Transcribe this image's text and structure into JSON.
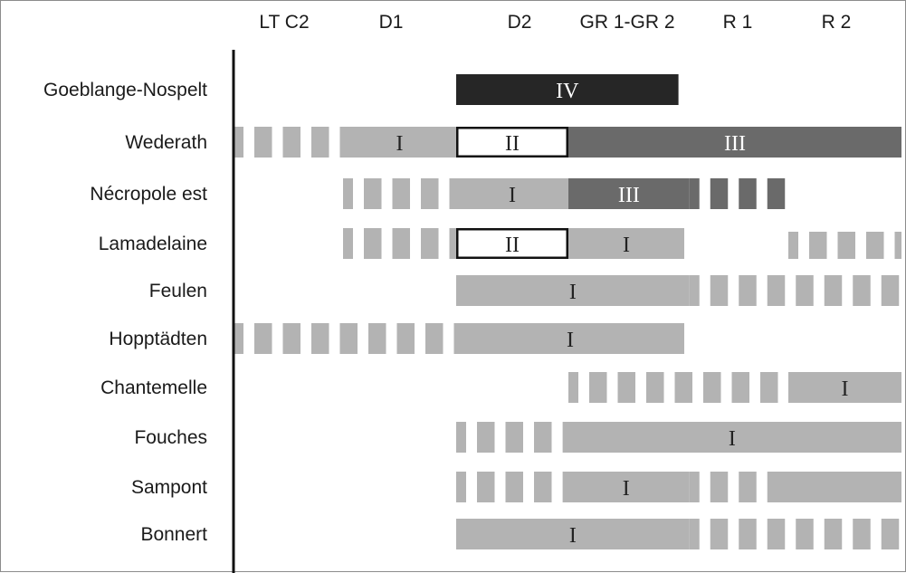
{
  "chart_data": {
    "type": "bar",
    "orientation": "horizontal-timeline",
    "title": "",
    "xlabel": "",
    "ylabel": "",
    "grid": false,
    "legend": "none",
    "periods": [
      "LT C2",
      "D1",
      "D2",
      "GR 1-GR 2",
      "R 1",
      "R 2"
    ],
    "period_boundaries": [
      "LT C2",
      "D1",
      "D2",
      "GR 1-GR 2",
      "R 1",
      "R 2",
      "end"
    ],
    "colors": {
      "light": "#b3b3b3",
      "dark": "#6a6a6a",
      "black": "#262626",
      "white": "#ffffff",
      "label_dark": "#222222",
      "label_light": "#ffffff"
    },
    "rows": [
      {
        "site": "Goeblange-Nospelt",
        "segments": [
          {
            "start": 2.0,
            "end": 3.95,
            "style": "black",
            "label": "IV"
          }
        ]
      },
      {
        "site": "Wederath",
        "segments": [
          {
            "start": 0.0,
            "end": 1.0,
            "style": "striped"
          },
          {
            "start": 1.0,
            "end": 2.0,
            "style": "light",
            "label": "I"
          },
          {
            "start": 2.0,
            "end": 3.0,
            "style": "white",
            "label": "II"
          },
          {
            "start": 3.0,
            "end": 6.0,
            "style": "dark",
            "label": "III"
          }
        ]
      },
      {
        "site": "Nécropole est",
        "segments": [
          {
            "start": 1.0,
            "end": 2.0,
            "style": "striped"
          },
          {
            "start": 2.0,
            "end": 3.0,
            "style": "light",
            "label": "I"
          },
          {
            "start": 3.0,
            "end": 4.05,
            "style": "dark",
            "label": "III"
          },
          {
            "start": 4.05,
            "end": 5.0,
            "style": "dark-striped"
          }
        ]
      },
      {
        "site": "Lamadelaine",
        "segments": [
          {
            "start": 1.0,
            "end": 2.0,
            "style": "striped"
          },
          {
            "start": 2.0,
            "end": 3.0,
            "style": "white",
            "label": "II"
          },
          {
            "start": 3.0,
            "end": 4.0,
            "style": "light",
            "label": "I"
          },
          {
            "start": 5.0,
            "end": 6.0,
            "style": "striped-low"
          }
        ]
      },
      {
        "site": "Feulen",
        "segments": [
          {
            "start": 2.0,
            "end": 4.05,
            "style": "light",
            "label": "I"
          },
          {
            "start": 4.05,
            "end": 6.0,
            "style": "striped"
          }
        ]
      },
      {
        "site": "Hopptädten",
        "segments": [
          {
            "start": 0.0,
            "end": 2.0,
            "style": "striped"
          },
          {
            "start": 2.0,
            "end": 4.0,
            "style": "light",
            "label": "I"
          }
        ]
      },
      {
        "site": "Chantemelle",
        "segments": [
          {
            "start": 3.0,
            "end": 5.0,
            "style": "striped"
          },
          {
            "start": 5.0,
            "end": 6.0,
            "style": "light",
            "label": "I"
          }
        ]
      },
      {
        "site": "Fouches",
        "segments": [
          {
            "start": 2.0,
            "end": 2.95,
            "style": "striped"
          },
          {
            "start": 2.95,
            "end": 6.0,
            "style": "light",
            "label": "I"
          }
        ]
      },
      {
        "site": "Sampont",
        "segments": [
          {
            "start": 2.0,
            "end": 2.95,
            "style": "striped"
          },
          {
            "start": 2.95,
            "end": 4.05,
            "style": "light",
            "label": "I"
          },
          {
            "start": 4.05,
            "end": 4.9,
            "style": "striped"
          },
          {
            "start": 4.9,
            "end": 6.0,
            "style": "light"
          }
        ]
      },
      {
        "site": "Bonnert",
        "segments": [
          {
            "start": 2.0,
            "end": 4.05,
            "style": "light",
            "label": "I"
          },
          {
            "start": 4.05,
            "end": 6.0,
            "style": "striped"
          }
        ]
      }
    ]
  }
}
